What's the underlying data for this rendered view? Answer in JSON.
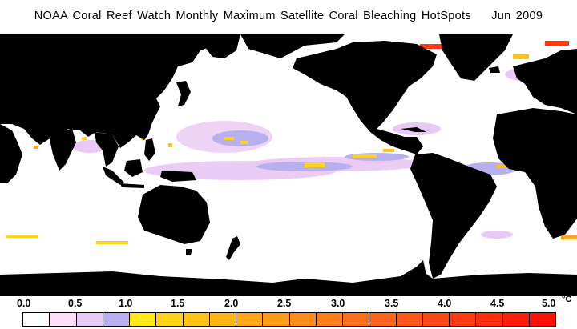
{
  "header": {
    "title": "NOAA Coral Reef Watch Monthly Maximum Satellite Coral Bleaching HotSpots",
    "date": "Jun 2009"
  },
  "legend": {
    "ticks": [
      "0.0",
      "0.5",
      "1.0",
      "1.5",
      "2.0",
      "2.5",
      "3.0",
      "3.5",
      "4.0",
      "4.5",
      "5.0"
    ],
    "unit": "°C",
    "colors": [
      "#ffffff",
      "#ffe0f8",
      "#e8c8f4",
      "#b8b0ee",
      "#ffe81a",
      "#ffd21a",
      "#ffc21a",
      "#ffb41a",
      "#ffa61a",
      "#ff9a1a",
      "#ff8c1a",
      "#ff7e1a",
      "#ff701a",
      "#ff621a",
      "#ff541a",
      "#ff4616",
      "#ff3a12",
      "#ff2c0e",
      "#ff1e0a",
      "#ff1006"
    ]
  },
  "map_colors": {
    "land": "#000000",
    "ocean": "#ffffff",
    "low": "#e8c8f4",
    "mid": "#b8b0ee",
    "high": "#ffd21a",
    "hot": "#ff3a12"
  }
}
